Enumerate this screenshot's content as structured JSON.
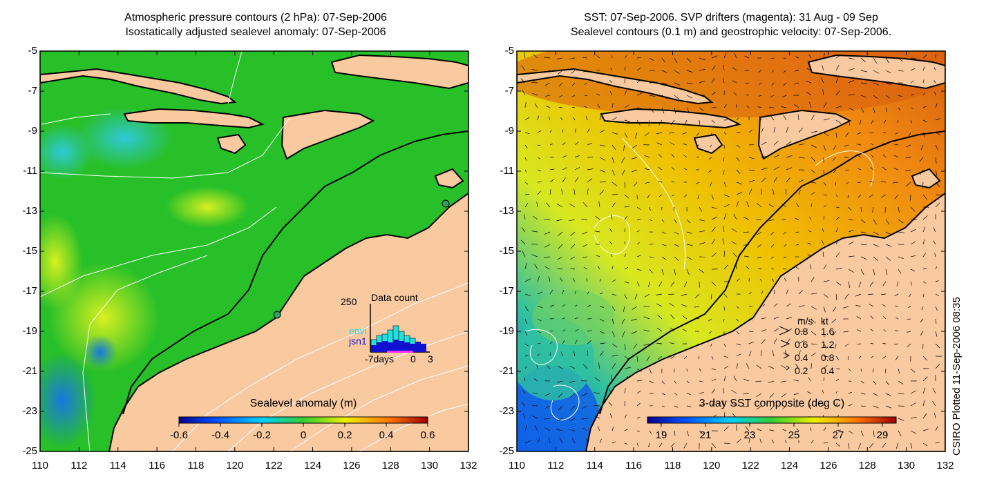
{
  "left_panel": {
    "title_line1": "Atmospheric pressure contours (2 hPa): 07-Sep-2006",
    "title_line2": "Isostatically adjusted sealevel anomaly: 07-Sep-2006",
    "colorbar": {
      "title": "Sealevel anomaly (m)",
      "ticks": [
        "-0.6",
        "-0.4",
        "-0.2",
        "0",
        "0.2",
        "0.4",
        "0.6"
      ]
    },
    "data_count_inset": {
      "max_label": "250",
      "title": "Data count",
      "series": [
        {
          "name": "envi",
          "color": "#22e0e0"
        },
        {
          "name": "jsn1",
          "color": "#1010d0"
        }
      ],
      "x_labels": [
        "-7days",
        "0",
        "3"
      ]
    }
  },
  "right_panel": {
    "title_line1": "SST: 07-Sep-2006. SVP drifters (magenta): 31 Aug - 09 Sep",
    "title_line2": "Sealevel contours (0.1 m) and geostrophic velocity: 07-Sep-2006.",
    "colorbar": {
      "title": "3-day SST composite (deg C)",
      "ticks": [
        "19",
        "21",
        "23",
        "25",
        "27",
        "29"
      ]
    },
    "velocity_legend": {
      "header_ms": "m/s",
      "header_kt": "kt",
      "rows": [
        {
          "ms": "0.8",
          "kt": "1.6"
        },
        {
          "ms": "0.6",
          "kt": "1.2"
        },
        {
          "ms": "0.4",
          "kt": "0.8"
        },
        {
          "ms": "0.2",
          "kt": "0.4"
        }
      ]
    }
  },
  "axes": {
    "x_ticks": [
      "110",
      "112",
      "114",
      "116",
      "118",
      "120",
      "122",
      "124",
      "126",
      "128",
      "130",
      "132"
    ],
    "y_ticks": [
      "-5",
      "-7",
      "-9",
      "-11",
      "-13",
      "-15",
      "-17",
      "-19",
      "-21",
      "-23",
      "-25"
    ],
    "lon_range": [
      110,
      132
    ],
    "lat_range": [
      -25,
      -5
    ]
  },
  "credit": "CSIRO Plotted 11-Sep-2006 08:35",
  "colors": {
    "land": "#f9c9a0",
    "coast": "#000000",
    "contour": "#ffffff"
  }
}
